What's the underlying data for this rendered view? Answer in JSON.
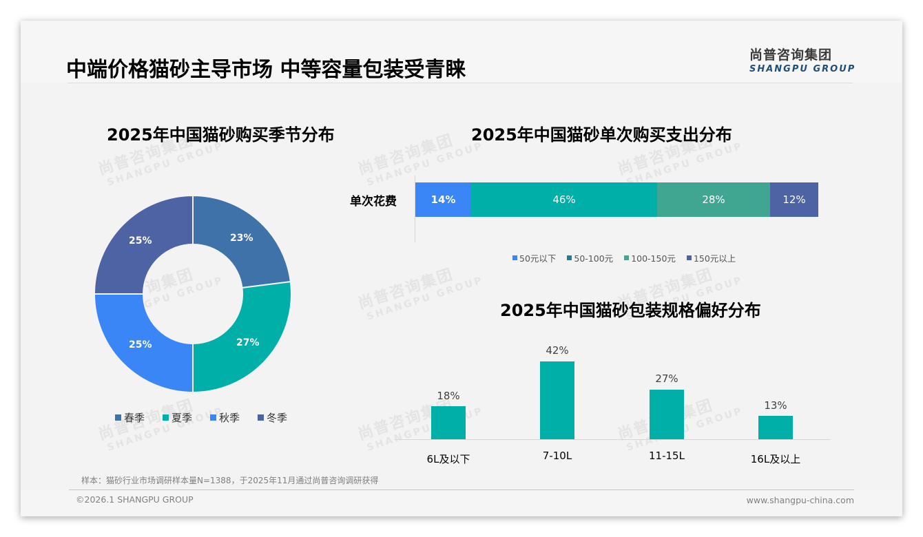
{
  "header": {
    "title": "中端价格猫砂主导市场 中等容量包装受青睐",
    "logo_cn": "尚普咨询集团",
    "logo_en": "SHANGPU GROUP"
  },
  "watermark": {
    "cn": "尚普咨询集团",
    "en": "SHANGPU GROUP"
  },
  "colors": {
    "spring": "#3f72a8",
    "summer": "#00b0a8",
    "autumn": "#3b86f6",
    "winter": "#4e63a3",
    "under50": "#3b86f6",
    "r50_100": "#00b0a8",
    "r50_100_legend": "#1f8190",
    "r100_150": "#40a692",
    "over150": "#4e63a3",
    "column": "#00b0a8"
  },
  "charts": {
    "season": {
      "title": "2025年中国猫砂购买季节分布",
      "legend": [
        "春季",
        "夏季",
        "秋季",
        "冬季"
      ],
      "labels": [
        "23%",
        "27%",
        "25%",
        "25%"
      ]
    },
    "spend": {
      "title": "2025年中国猫砂单次购买支出分布",
      "category": "单次花费",
      "legend": [
        "50元以下",
        "50-100元",
        "100-150元",
        "150元以上"
      ],
      "labels": [
        "14%",
        "46%",
        "28%",
        "12%"
      ]
    },
    "package": {
      "title": "2025年中国猫砂包装规格偏好分布",
      "categories": [
        "6L及以下",
        "7-10L",
        "11-15L",
        "16L及以上"
      ],
      "labels": [
        "18%",
        "42%",
        "27%",
        "13%"
      ]
    }
  },
  "chart_data": [
    {
      "type": "pie",
      "title": "2025年中国猫砂购买季节分布",
      "categories": [
        "春季",
        "夏季",
        "秋季",
        "冬季"
      ],
      "values": [
        23,
        27,
        25,
        25
      ],
      "unit": "%",
      "donut": true,
      "legend_position": "bottom"
    },
    {
      "type": "bar",
      "orientation": "horizontal-stacked",
      "title": "2025年中国猫砂单次购买支出分布",
      "categories": [
        "单次花费"
      ],
      "series": [
        {
          "name": "50元以下",
          "values": [
            14
          ]
        },
        {
          "name": "50-100元",
          "values": [
            46
          ]
        },
        {
          "name": "100-150元",
          "values": [
            28
          ]
        },
        {
          "name": "150元以上",
          "values": [
            12
          ]
        }
      ],
      "unit": "%",
      "legend_position": "bottom"
    },
    {
      "type": "bar",
      "title": "2025年中国猫砂包装规格偏好分布",
      "categories": [
        "6L及以下",
        "7-10L",
        "11-15L",
        "16L及以上"
      ],
      "values": [
        18,
        42,
        27,
        13
      ],
      "unit": "%",
      "xlabel": "",
      "ylabel": "",
      "grid": false
    }
  ],
  "footer": {
    "note": "样本：猫砂行业市场调研样本量N=1388，于2025年11月通过尚普咨询调研获得",
    "copyright": "©2026.1 SHANGPU GROUP",
    "website": "www.shangpu-china.com"
  }
}
